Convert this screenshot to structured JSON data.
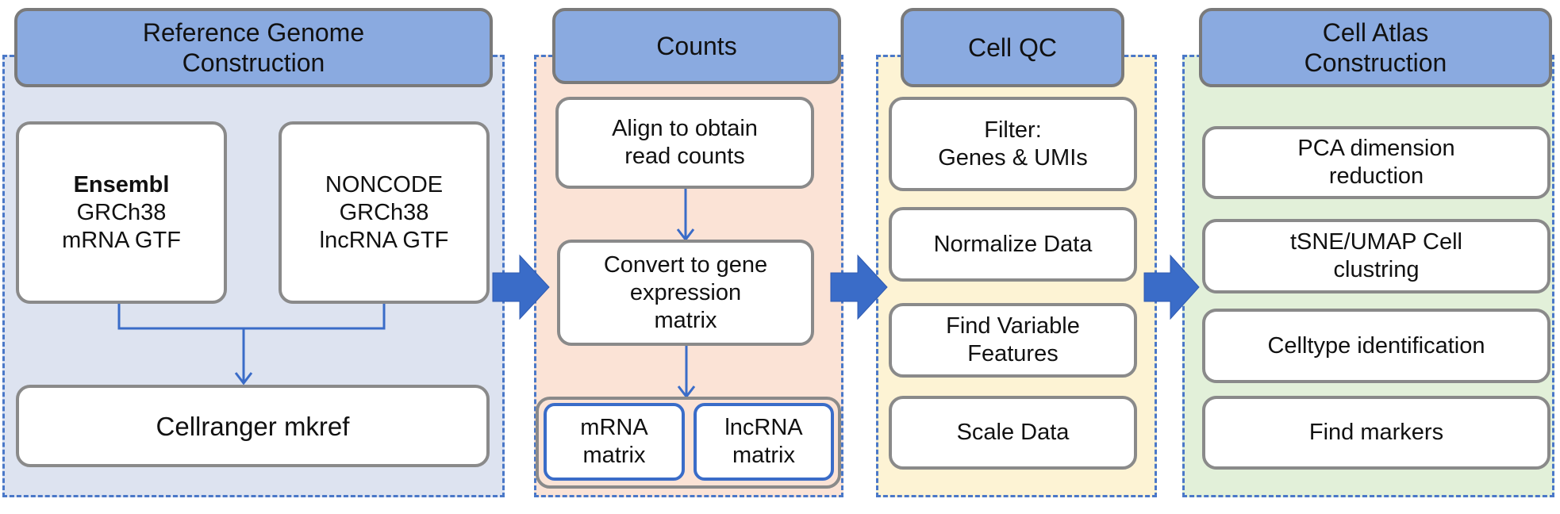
{
  "colors": {
    "panel_border": "#4a78c8",
    "header_fill": "#8aaae0",
    "arrow": "#3a6cc8",
    "reference_bg": "#dde3f0",
    "counts_bg": "#fbe3d6",
    "qc_bg": "#fdf3d4",
    "atlas_bg": "#e2f0d9"
  },
  "reference": {
    "title": "Reference Genome\nConstruction",
    "ensembl_name": "Ensembl",
    "ensembl_lines": "GRCh38\nmRNA GTF",
    "noncode": "NONCODE\nGRCh38\nlncRNA GTF",
    "mkref": "Cellranger mkref"
  },
  "counts": {
    "title": "Counts",
    "align": "Align to obtain\nread counts",
    "convert": "Convert to gene\nexpression\nmatrix",
    "mrna": "mRNA\nmatrix",
    "lncrna": "lncRNA\nmatrix"
  },
  "qc": {
    "title": "Cell QC",
    "steps": [
      "Filter:\nGenes & UMIs",
      "Normalize Data",
      "Find Variable\nFeatures",
      "Scale Data"
    ]
  },
  "atlas": {
    "title": "Cell Atlas\nConstruction",
    "steps": [
      "PCA dimension\nreduction",
      "tSNE/UMAP Cell\nclustring",
      "Celltype identification",
      "Find markers"
    ]
  }
}
